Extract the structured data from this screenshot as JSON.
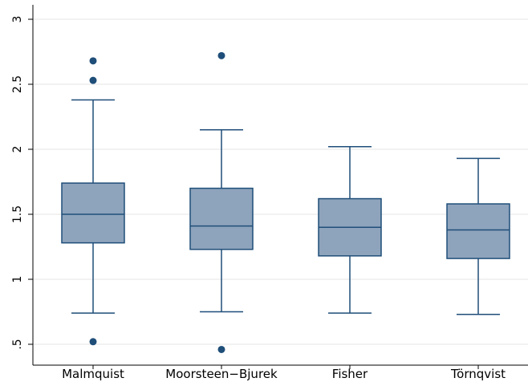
{
  "chart_data": {
    "type": "box",
    "categories": [
      "Malmquist",
      "Moorsteen−Bjurek",
      "Fisher",
      "Törnqvist"
    ],
    "y_ticks": [
      {
        "value": 0.5,
        "label": ".5"
      },
      {
        "value": 1,
        "label": "1"
      },
      {
        "value": 1.5,
        "label": "1.5"
      },
      {
        "value": 2,
        "label": "2"
      },
      {
        "value": 2.5,
        "label": "2.5"
      },
      {
        "value": 3,
        "label": "3"
      }
    ],
    "ylim": [
      0.45,
      3.1
    ],
    "grid": true,
    "boxes": [
      {
        "whisker_low": 0.74,
        "q1": 1.28,
        "median": 1.5,
        "q3": 1.74,
        "whisker_high": 2.38,
        "outliers": [
          0.52,
          2.53,
          2.68
        ]
      },
      {
        "whisker_low": 0.75,
        "q1": 1.23,
        "median": 1.41,
        "q3": 1.7,
        "whisker_high": 2.15,
        "outliers": [
          0.46,
          2.72
        ]
      },
      {
        "whisker_low": 0.74,
        "q1": 1.18,
        "median": 1.4,
        "q3": 1.62,
        "whisker_high": 2.02,
        "outliers": []
      },
      {
        "whisker_low": 0.73,
        "q1": 1.16,
        "median": 1.38,
        "q3": 1.58,
        "whisker_high": 1.93,
        "outliers": []
      }
    ],
    "colors": {
      "box_fill": "#8ea4bc",
      "stroke": "#1f4e79",
      "grid": "#e6e6e6",
      "axis": "#000000"
    }
  }
}
